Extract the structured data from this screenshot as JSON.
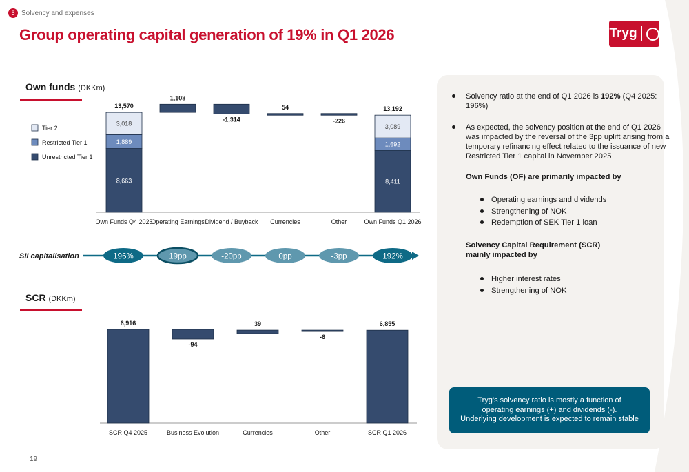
{
  "header": {
    "section_number": "5",
    "section_name": "Solvency and expenses",
    "title": "Group operating capital generation of 19% in Q1 2026",
    "logo_text": "Tryg"
  },
  "own_funds": {
    "label": "Own funds",
    "unit": "(DKKm)"
  },
  "scr": {
    "label": "SCR",
    "unit": "(DKKm)"
  },
  "sii": {
    "label": "SII capitalisation",
    "values": [
      "196%",
      "19pp",
      "-20pp",
      "0pp",
      "-3pp",
      "192%"
    ]
  },
  "chart_data": [
    {
      "type": "bar",
      "subtype": "waterfall-stacked",
      "categories": [
        "Own Funds Q4 2025",
        "Operating Earnings",
        "Dividend / Buyback",
        "Currencies",
        "Other",
        "Own Funds Q1 2026"
      ],
      "legend": [
        "Tier 2",
        "Restricted Tier 1",
        "Unrestricted Tier 1"
      ],
      "legend_placement": "left",
      "start": {
        "category": "Own Funds Q4 2025",
        "total": 13570,
        "tier2": 3018,
        "restricted_tier1": 1889,
        "unrestricted_tier1": 8663
      },
      "end": {
        "category": "Own Funds Q1 2026",
        "total": 13192,
        "tier2": 3089,
        "restricted_tier1": 1692,
        "unrestricted_tier1": 8411
      },
      "deltas": [
        {
          "category": "Operating Earnings",
          "value": 1108,
          "label": "1,108"
        },
        {
          "category": "Dividend / Buyback",
          "value": -1314,
          "label": "-1,314"
        },
        {
          "category": "Currencies",
          "value": 54,
          "label": "54"
        },
        {
          "category": "Other",
          "value": -226,
          "label": "-226"
        }
      ],
      "labels": {
        "start_total": "13,570",
        "start_tier2": "3,018",
        "start_rt1": "1,889",
        "start_ut1": "8,663",
        "end_total": "13,192",
        "end_tier2": "3,089",
        "end_rt1": "1,692",
        "end_ut1": "8,411"
      },
      "ylim": [
        0,
        14800
      ],
      "colors": {
        "tier2": "#e3e9f4",
        "restricted_tier1": "#6d8bbd",
        "unrestricted_tier1": "#354b6e"
      }
    },
    {
      "type": "bar",
      "subtype": "waterfall",
      "categories": [
        "SCR Q4 2025",
        "Business Evolution",
        "Currencies",
        "Other",
        "SCR Q1 2026"
      ],
      "start": {
        "category": "SCR Q4 2025",
        "total": 6916,
        "label": "6,916"
      },
      "end": {
        "category": "SCR Q1 2026",
        "total": 6855,
        "label": "6,855"
      },
      "deltas": [
        {
          "category": "Business Evolution",
          "value": -94,
          "label": "-94"
        },
        {
          "category": "Currencies",
          "value": 39,
          "label": "39"
        },
        {
          "category": "Other",
          "value": -6,
          "label": "-6"
        }
      ],
      "ylim": [
        0,
        7000
      ],
      "colors": {
        "bar": "#354b6e"
      }
    }
  ],
  "right_panel": {
    "b1_pre": "Solvency ratio at the end of Q1 2026  is ",
    "b1_bold": "192%",
    "b1_post": " (Q4 2025:",
    "b1_line2": "196%)",
    "b2_lines": [
      "As expected, the solvency position at the end of Q1 2026",
      "was impacted by the reversal of the 3pp uplift arising from a",
      "temporary refinancing effect related to the issuance of new",
      "Restricted Tier 1 capital in November 2025"
    ],
    "of_heading": "Own Funds (OF) are primarily impacted by",
    "of_items": [
      "Operating earnings and dividends",
      "Strengthening of NOK",
      "Redemption of SEK Tier 1 loan"
    ],
    "scr_heading_1": "Solvency Capital Requirement (SCR)",
    "scr_heading_2": "mainly impacted by",
    "scr_items": [
      "Higher interest rates",
      "Strengthening of NOK"
    ]
  },
  "note": {
    "lines": [
      "Tryg’s solvency ratio is mostly a function of",
      "operating earnings  (+) and dividends (-).",
      "Underlying development is expected to remain stable"
    ]
  },
  "footer": {
    "page_number": "19"
  }
}
